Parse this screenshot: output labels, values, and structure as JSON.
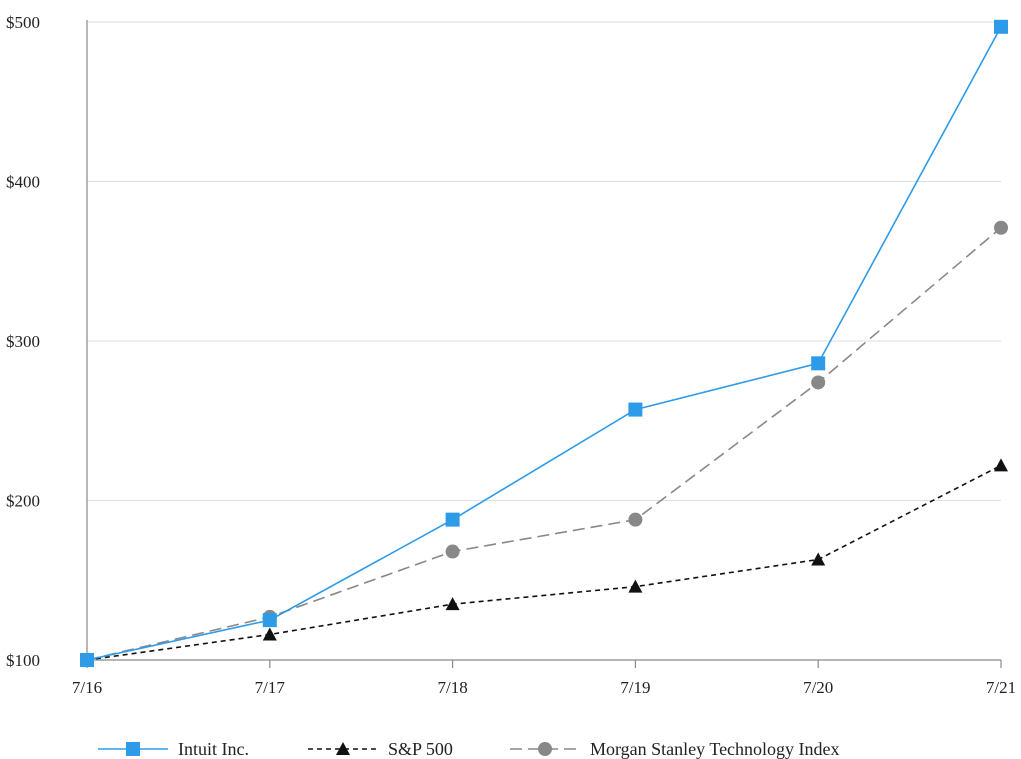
{
  "chart_data": {
    "type": "line",
    "title": "",
    "xlabel": "",
    "ylabel": "",
    "categories": [
      "7/16",
      "7/17",
      "7/18",
      "7/19",
      "7/20",
      "7/21"
    ],
    "yticks": [
      "$100",
      "$200",
      "$300",
      "$400",
      "$500"
    ],
    "ytick_values": [
      100,
      200,
      300,
      400,
      500
    ],
    "ylim": [
      100,
      500
    ],
    "grid": true,
    "legend_position": "bottom",
    "series": [
      {
        "name": "Intuit Inc.",
        "values": [
          100,
          125,
          188,
          257,
          286,
          497
        ],
        "color": "#2e9be8",
        "marker": "square",
        "line_style": "solid"
      },
      {
        "name": "S&P 500",
        "values": [
          100,
          116,
          135,
          146,
          163,
          222
        ],
        "color": "#111111",
        "marker": "triangle",
        "line_style": "dashed"
      },
      {
        "name": "Morgan Stanley Technology Index",
        "values": [
          100,
          127,
          168,
          188,
          274,
          371
        ],
        "color": "#888888",
        "marker": "circle",
        "line_style": "dashed"
      }
    ]
  }
}
